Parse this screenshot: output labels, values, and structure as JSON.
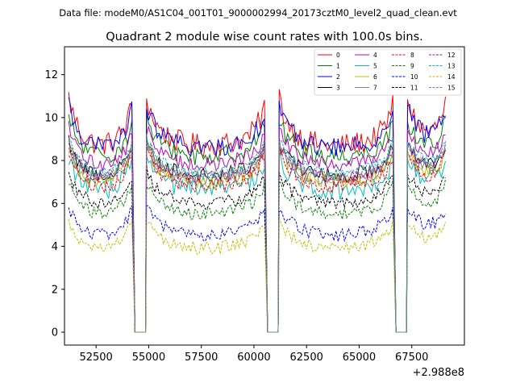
{
  "chart_data": {
    "type": "line",
    "suptitle": "Data file: modeM0/AS1C04_001T01_9000002994_20173cztM0_level2_quad_clean.evt",
    "title": "Quadrant 2 module wise count rates with 100.0s bins.",
    "xlabel": "",
    "ylabel": "",
    "x_offset_label": "+2.988e8",
    "x_offset": 298800000,
    "xlim": [
      51000,
      70000
    ],
    "ylim": [
      -0.6,
      13.3
    ],
    "x_ticks": [
      52500,
      55000,
      57500,
      60000,
      62500,
      65000,
      67500
    ],
    "x_tick_labels": [
      "52500",
      "55000",
      "57500",
      "60000",
      "62500",
      "65000",
      "67500"
    ],
    "y_ticks": [
      0,
      2,
      4,
      6,
      8,
      10,
      12
    ],
    "y_tick_labels": [
      "0",
      "2",
      "4",
      "6",
      "8",
      "10",
      "12"
    ],
    "legend_position": "top-right",
    "segments": [
      [
        51200,
        54200
      ],
      [
        54900,
        60500
      ],
      [
        61200,
        66600
      ],
      [
        67300,
        69100
      ]
    ],
    "gaps": [
      [
        54350,
        54850
      ],
      [
        60650,
        61150
      ],
      [
        66750,
        67250
      ]
    ],
    "series": [
      {
        "name": "0",
        "color": "#ff0000",
        "dashed": false,
        "level": 9.3,
        "edge_boost": 1.5,
        "noise": 0.55
      },
      {
        "name": "1",
        "color": "#008000",
        "dashed": false,
        "level": 8.8,
        "edge_boost": 1.0,
        "noise": 0.45
      },
      {
        "name": "2",
        "color": "#0000ff",
        "dashed": false,
        "level": 9.2,
        "edge_boost": 1.3,
        "noise": 0.45
      },
      {
        "name": "3",
        "color": "#000000",
        "dashed": false,
        "level": 7.9,
        "edge_boost": 0.9,
        "noise": 0.35
      },
      {
        "name": "4",
        "color": "#bf00bf",
        "dashed": false,
        "level": 8.4,
        "edge_boost": 1.0,
        "noise": 0.35
      },
      {
        "name": "5",
        "color": "#00bfbf",
        "dashed": false,
        "level": 7.2,
        "edge_boost": 0.9,
        "noise": 0.45
      },
      {
        "name": "6",
        "color": "#bfbf00",
        "dashed": false,
        "level": 7.6,
        "edge_boost": 0.9,
        "noise": 0.35
      },
      {
        "name": "7",
        "color": "#808080",
        "dashed": false,
        "level": 7.7,
        "edge_boost": 1.0,
        "noise": 0.35
      },
      {
        "name": "8",
        "color": "#ff0000",
        "dashed": true,
        "level": 7.4,
        "edge_boost": 0.9,
        "noise": 0.35
      },
      {
        "name": "9",
        "color": "#008000",
        "dashed": true,
        "level": 6.1,
        "edge_boost": 0.8,
        "noise": 0.3
      },
      {
        "name": "10",
        "color": "#0000ff",
        "dashed": true,
        "level": 5.1,
        "edge_boost": 0.7,
        "noise": 0.3
      },
      {
        "name": "11",
        "color": "#000000",
        "dashed": true,
        "level": 6.6,
        "edge_boost": 0.8,
        "noise": 0.3
      },
      {
        "name": "12",
        "color": "#bf00bf",
        "dashed": true,
        "level": 7.8,
        "edge_boost": 0.9,
        "noise": 0.3
      },
      {
        "name": "13",
        "color": "#00bfbf",
        "dashed": true,
        "level": 8.0,
        "edge_boost": 0.9,
        "noise": 0.3
      },
      {
        "name": "14",
        "color": "#bfbf00",
        "dashed": true,
        "level": 4.5,
        "edge_boost": 0.6,
        "noise": 0.3
      },
      {
        "name": "15",
        "color": "#808080",
        "dashed": true,
        "level": 7.9,
        "edge_boost": 0.9,
        "noise": 0.3
      }
    ]
  }
}
